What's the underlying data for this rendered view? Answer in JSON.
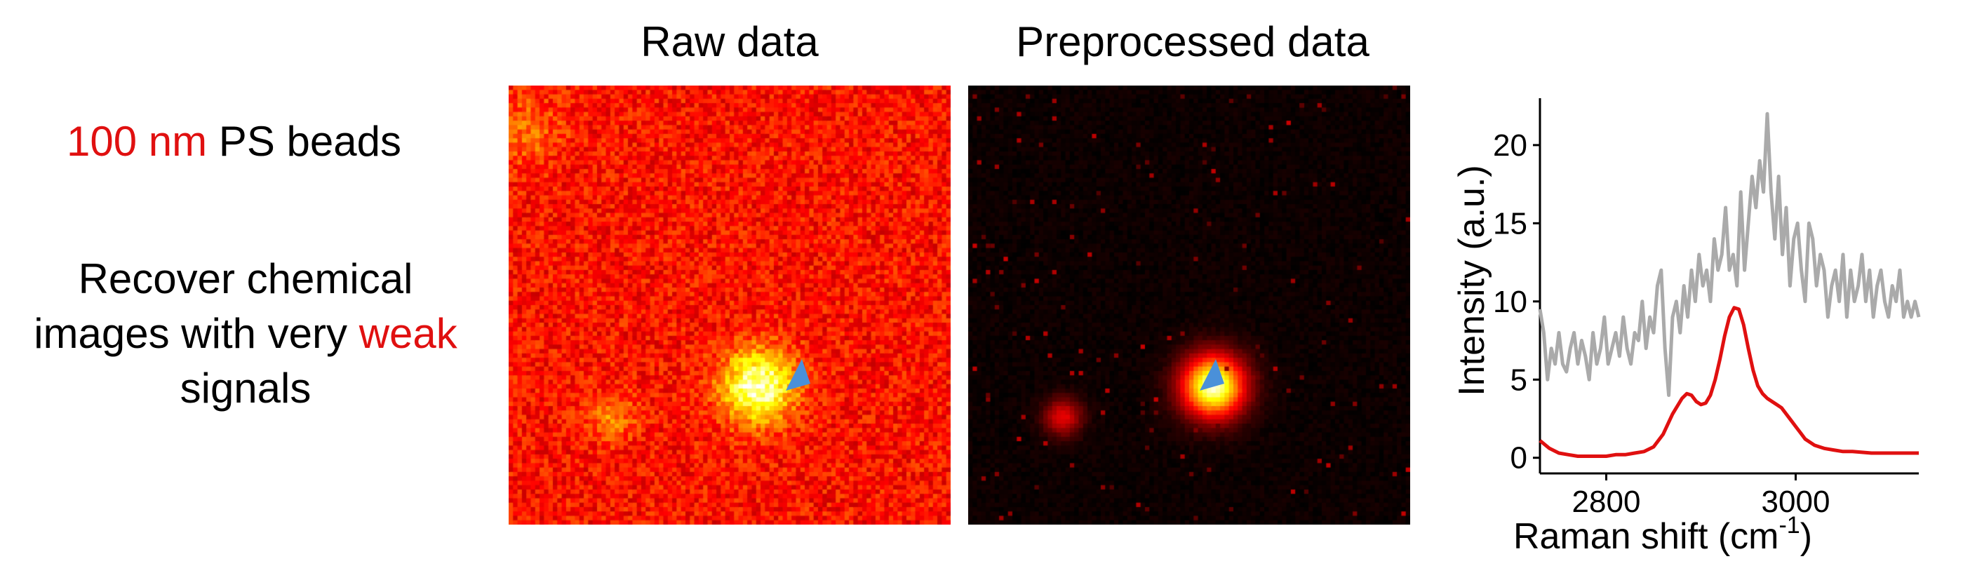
{
  "left_text": {
    "line1_highlight": "100 nm",
    "line1_rest": " PS beads",
    "line2": "Recover chemical",
    "line3_start": "images with very ",
    "line3_highlight": "weak",
    "line4": "signals"
  },
  "panels": [
    {
      "title": "Raw data",
      "kind": "raw"
    },
    {
      "title": "Preprocessed data",
      "kind": "processed"
    }
  ],
  "marker": {
    "icon": "arrowhead-marker-icon",
    "color": "#4a90d9"
  },
  "colors": {
    "highlight": "#e01010",
    "raw_line": "#aaaaaa",
    "processed_line": "#e01010"
  },
  "chart_data": {
    "type": "line",
    "xlabel": "Raman shift (cm",
    "xlabel_sup": "-1",
    "xlabel_end": ")",
    "ylabel": "Intensity (a.u.)",
    "xlim": [
      2730,
      3130
    ],
    "ylim": [
      -1,
      23
    ],
    "xticks": [
      2800,
      3000
    ],
    "yticks": [
      0,
      5,
      10,
      15,
      20
    ],
    "series": [
      {
        "color": "#aaaaaa",
        "x": [
          2730,
          2734,
          2738,
          2742,
          2746,
          2750,
          2754,
          2758,
          2762,
          2766,
          2770,
          2774,
          2778,
          2782,
          2786,
          2790,
          2794,
          2798,
          2802,
          2806,
          2810,
          2814,
          2818,
          2822,
          2826,
          2830,
          2834,
          2838,
          2842,
          2846,
          2850,
          2854,
          2858,
          2862,
          2866,
          2870,
          2874,
          2878,
          2882,
          2886,
          2890,
          2894,
          2898,
          2902,
          2906,
          2910,
          2914,
          2918,
          2922,
          2926,
          2930,
          2934,
          2938,
          2942,
          2946,
          2950,
          2954,
          2958,
          2962,
          2966,
          2970,
          2974,
          2978,
          2982,
          2986,
          2990,
          2994,
          2998,
          3002,
          3006,
          3010,
          3014,
          3018,
          3022,
          3026,
          3030,
          3034,
          3038,
          3042,
          3046,
          3050,
          3054,
          3058,
          3062,
          3066,
          3070,
          3074,
          3078,
          3082,
          3086,
          3090,
          3094,
          3098,
          3102,
          3106,
          3110,
          3114,
          3118,
          3122,
          3126,
          3130
        ],
        "y": [
          9.5,
          8,
          5,
          7,
          6,
          8,
          6,
          5.5,
          7,
          8,
          6,
          7.5,
          6.5,
          5,
          8,
          6,
          7,
          9,
          6,
          7,
          8,
          6.5,
          9,
          7,
          6,
          8,
          7.5,
          10,
          7,
          9,
          8,
          11,
          12,
          7,
          4,
          9,
          10,
          8,
          11,
          9,
          12,
          10,
          13,
          11,
          12,
          10,
          14,
          12,
          13,
          16,
          12,
          13,
          11,
          17,
          12,
          15,
          18,
          16,
          19,
          17,
          22,
          17,
          14,
          18,
          13,
          16,
          11,
          14,
          15,
          12,
          10,
          15,
          14,
          11,
          13,
          12,
          9,
          11,
          12,
          10,
          13,
          9,
          12,
          10,
          11,
          13,
          10,
          12,
          9,
          11,
          12,
          10,
          9,
          11,
          10,
          12,
          9,
          10,
          9,
          10,
          9
        ]
      },
      {
        "color": "#e01010",
        "x": [
          2730,
          2740,
          2750,
          2760,
          2770,
          2780,
          2790,
          2800,
          2810,
          2820,
          2830,
          2840,
          2850,
          2860,
          2870,
          2880,
          2885,
          2890,
          2895,
          2900,
          2905,
          2910,
          2915,
          2920,
          2925,
          2930,
          2935,
          2940,
          2945,
          2950,
          2955,
          2960,
          2965,
          2970,
          2975,
          2980,
          2985,
          2990,
          2995,
          3000,
          3005,
          3010,
          3020,
          3030,
          3040,
          3050,
          3060,
          3080,
          3100,
          3130
        ],
        "y": [
          1.1,
          0.6,
          0.3,
          0.2,
          0.1,
          0.1,
          0.1,
          0.1,
          0.2,
          0.2,
          0.3,
          0.4,
          0.7,
          1.5,
          2.8,
          3.8,
          4.1,
          4.0,
          3.6,
          3.4,
          3.5,
          4.0,
          5.0,
          6.3,
          7.8,
          9.0,
          9.6,
          9.5,
          8.5,
          7.0,
          5.6,
          4.6,
          4.1,
          3.8,
          3.6,
          3.4,
          3.2,
          2.8,
          2.4,
          2.0,
          1.6,
          1.2,
          0.8,
          0.6,
          0.5,
          0.4,
          0.4,
          0.3,
          0.3,
          0.3
        ]
      }
    ]
  }
}
